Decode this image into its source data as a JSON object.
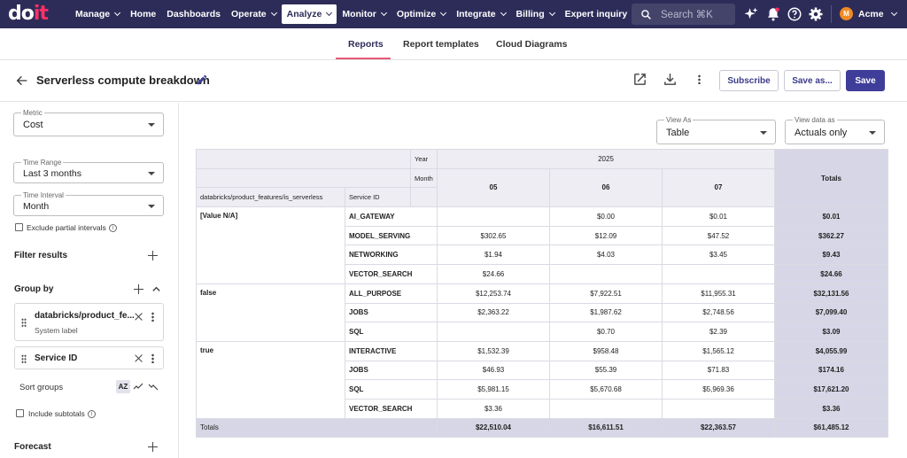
{
  "nav": {
    "logo_part1": "do",
    "logo_part2": "it",
    "items": [
      {
        "label": "Manage",
        "chev": true
      },
      {
        "label": "Home",
        "chev": false
      },
      {
        "label": "Dashboards",
        "chev": false
      },
      {
        "label": "Operate",
        "chev": true
      },
      {
        "label": "Analyze",
        "chev": true,
        "active": true
      },
      {
        "label": "Monitor",
        "chev": true
      },
      {
        "label": "Optimize",
        "chev": true
      },
      {
        "label": "Integrate",
        "chev": true
      },
      {
        "label": "Billing",
        "chev": true
      },
      {
        "label": "Expert inquiry",
        "chev": false
      }
    ],
    "search_placeholder": "Search ⌘K",
    "account": "Acme",
    "avatar_letter": "M"
  },
  "tabs": [
    "Reports",
    "Report templates",
    "Cloud Diagrams"
  ],
  "header": {
    "title": "Serverless compute breakdown",
    "subscribe": "Subscribe",
    "save_as": "Save as...",
    "save": "Save"
  },
  "sidebar": {
    "metric_label": "Metric",
    "metric": "Cost",
    "time_range_label": "Time Range",
    "time_range": "Last 3 months",
    "time_interval_label": "Time Interval",
    "time_interval": "Month",
    "exclude_partial": "Exclude partial intervals",
    "filter_results": "Filter results",
    "group_by": "Group by",
    "group1_title": "databricks/product_fe...",
    "group1_sub": "System label",
    "group2_title": "Service ID",
    "sort_groups": "Sort groups",
    "sort_az": "AZ",
    "include_subtotals": "Include subtotals",
    "forecast": "Forecast"
  },
  "view": {
    "view_as_label": "View As",
    "view_as": "Table",
    "view_data_label": "View data as",
    "view_data": "Actuals only"
  },
  "table": {
    "year_label": "Year",
    "month_label": "Month",
    "year": "2025",
    "months": [
      "05",
      "06",
      "07"
    ],
    "totals_label": "Totals",
    "row_key_header": "databricks/product_features/is_serverless",
    "service_header": "Service ID",
    "groups": [
      {
        "key": "[Value N/A]",
        "rows": [
          {
            "service": "AI_GATEWAY",
            "v": [
              "",
              "$0.00",
              "$0.01"
            ],
            "total": "$0.01"
          },
          {
            "service": "MODEL_SERVING",
            "v": [
              "$302.65",
              "$12.09",
              "$47.52"
            ],
            "total": "$362.27"
          },
          {
            "service": "NETWORKING",
            "v": [
              "$1.94",
              "$4.03",
              "$3.45"
            ],
            "total": "$9.43"
          },
          {
            "service": "VECTOR_SEARCH",
            "v": [
              "$24.66",
              "",
              ""
            ],
            "total": "$24.66"
          }
        ]
      },
      {
        "key": "false",
        "rows": [
          {
            "service": "ALL_PURPOSE",
            "v": [
              "$12,253.74",
              "$7,922.51",
              "$11,955.31"
            ],
            "total": "$32,131.56"
          },
          {
            "service": "JOBS",
            "v": [
              "$2,363.22",
              "$1,987.62",
              "$2,748.56"
            ],
            "total": "$7,099.40"
          },
          {
            "service": "SQL",
            "v": [
              "",
              "$0.70",
              "$2.39"
            ],
            "total": "$3.09"
          }
        ]
      },
      {
        "key": "true",
        "rows": [
          {
            "service": "INTERACTIVE",
            "v": [
              "$1,532.39",
              "$958.48",
              "$1,565.12"
            ],
            "total": "$4,055.99"
          },
          {
            "service": "JOBS",
            "v": [
              "$46.93",
              "$55.39",
              "$71.83"
            ],
            "total": "$174.16"
          },
          {
            "service": "SQL",
            "v": [
              "$5,981.15",
              "$5,670.68",
              "$5,969.36"
            ],
            "total": "$17,621.20"
          },
          {
            "service": "VECTOR_SEARCH",
            "v": [
              "$3.36",
              "",
              ""
            ],
            "total": "$3.36"
          }
        ]
      }
    ],
    "totals_row": {
      "label": "Totals",
      "v": [
        "$22,510.04",
        "$16,611.51",
        "$22,363.57"
      ],
      "total": "$61,485.12"
    }
  }
}
